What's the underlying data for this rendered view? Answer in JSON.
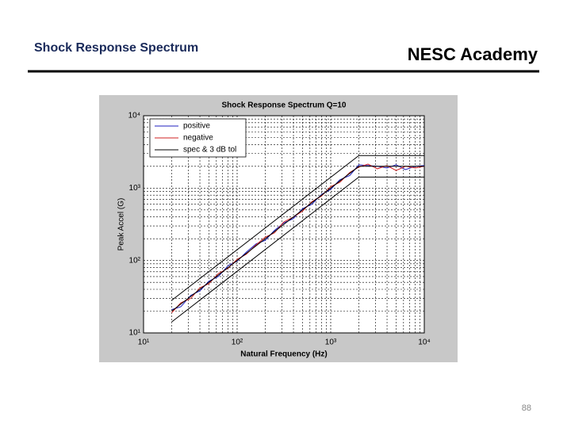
{
  "header": {
    "title": "Shock Response Spectrum",
    "brand": "NESC Academy"
  },
  "footer": {
    "page": "88"
  },
  "chart_data": {
    "type": "line",
    "title": "Shock Response Spectrum Q=10",
    "x_label": "Natural Frequency (Hz)",
    "y_label": "Peak Accel (G)",
    "x_scale": "log",
    "y_scale": "log",
    "grid": true,
    "minor_grid": true,
    "legend": "upper left",
    "xlim": [
      10,
      10000
    ],
    "ylim": [
      10,
      10000
    ],
    "xticks": [
      {
        "value": 10,
        "label": "10¹"
      },
      {
        "value": 100,
        "label": "10²"
      },
      {
        "value": 1000,
        "label": "10³"
      },
      {
        "value": 10000,
        "label": "10⁴"
      }
    ],
    "yticks": [
      {
        "value": 10,
        "label": "10¹"
      },
      {
        "value": 100,
        "label": "10²"
      },
      {
        "value": 1000,
        "label": "10³"
      },
      {
        "value": 10000,
        "label": "10⁴"
      }
    ],
    "x": [
      20,
      25,
      32,
      40,
      50,
      63,
      80,
      100,
      125,
      160,
      200,
      250,
      315,
      400,
      500,
      630,
      800,
      1000,
      1250,
      1600,
      2000,
      2500,
      3150,
      4000,
      5000,
      6300,
      8000,
      10000
    ],
    "series": [
      {
        "name": "positive",
        "color": "#1f1fbf",
        "values": [
          21,
          23,
          33,
          38,
          52,
          60,
          85,
          98,
          130,
          170,
          190,
          260,
          330,
          380,
          520,
          600,
          820,
          960,
          1300,
          1500,
          2100,
          2050,
          2000,
          1900,
          2100,
          1800,
          2000,
          2050
        ]
      },
      {
        "name": "negative",
        "color": "#d02020",
        "values": [
          19,
          26,
          30,
          42,
          48,
          66,
          78,
          104,
          122,
          165,
          210,
          240,
          340,
          400,
          480,
          650,
          780,
          1050,
          1200,
          1650,
          1950,
          2150,
          1850,
          2050,
          1750,
          2000,
          1900,
          2000
        ]
      },
      {
        "name": "spec & 3 dB tol",
        "color": "#000000",
        "x": [
          20,
          2000,
          10000
        ],
        "values": [
          20,
          2000,
          2000
        ],
        "upper": [
          28.2,
          2820,
          2820
        ],
        "lower": [
          14.2,
          1420,
          1420
        ]
      }
    ]
  }
}
